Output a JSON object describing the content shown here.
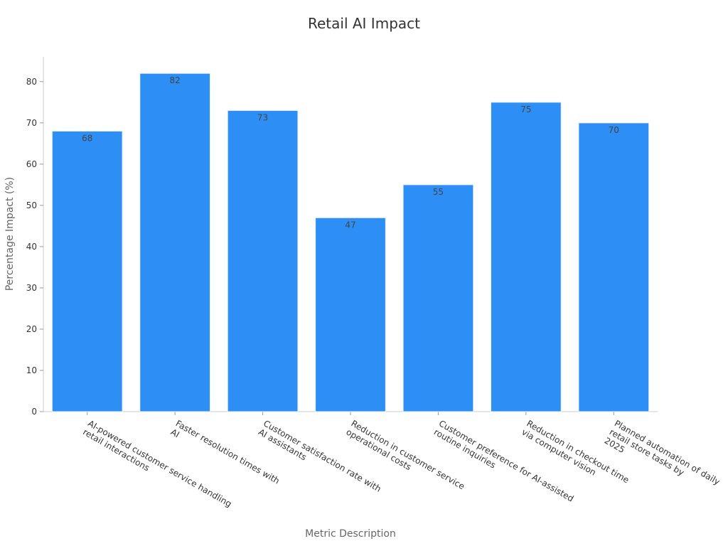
{
  "chart_data": {
    "type": "bar",
    "title": "Retail AI Impact",
    "xlabel": "Metric Description",
    "ylabel": "Percentage Impact (%)",
    "categories": [
      [
        "AI-powered customer service handling",
        "retail interactions"
      ],
      [
        "Faster resolution times with",
        "AI"
      ],
      [
        "Customer satisfaction rate with",
        "AI assistants"
      ],
      [
        "Reduction in customer service",
        "operational costs"
      ],
      [
        "Customer preference for AI-assisted",
        "routine inquiries"
      ],
      [
        "Reduction in checkout time",
        "via computer vision"
      ],
      [
        "Planned automation of daily",
        "retail store tasks by",
        "2025"
      ]
    ],
    "values": [
      68,
      82,
      73,
      47,
      55,
      75,
      70
    ],
    "data_labels": [
      "68",
      "82",
      "73",
      "47",
      "55",
      "75",
      "70"
    ],
    "ylim": [
      0,
      86
    ],
    "yticks": [
      0,
      10,
      20,
      30,
      40,
      50,
      60,
      70,
      80
    ],
    "grid": false,
    "colors": {
      "bar": "#2d8ff5",
      "bar_edge": "#e8f1fd"
    }
  }
}
